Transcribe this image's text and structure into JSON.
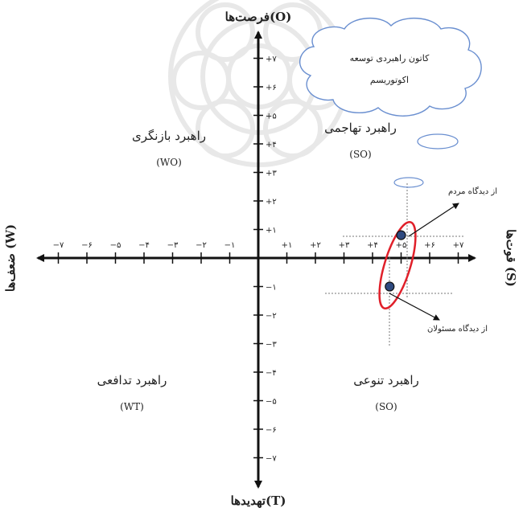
{
  "axes": {
    "top": "فرصت‌ها(O)",
    "bottom": "تهدیدها(T)",
    "left": "ضعف‌ها (W)",
    "right": "قوت‌ها (S)"
  },
  "y_ticks_positive": [
    "+۱",
    "+۲",
    "+۳",
    "+۴",
    "+۵",
    "+۶",
    "+۷"
  ],
  "y_ticks_negative": [
    "−۱",
    "−۲",
    "−۳",
    "−۴",
    "−۵",
    "−۶",
    "−۷"
  ],
  "x_ticks_positive": [
    "+۱",
    "+۲",
    "+۳",
    "+۴",
    "+۵",
    "+۶",
    "+۷"
  ],
  "x_ticks_negative": [
    "−۱",
    "−۲",
    "−۳",
    "−۴",
    "−۵",
    "−۶",
    "−۷"
  ],
  "quadrants": {
    "wo": {
      "title": "راهبرد بازنگری",
      "code": "(WO)"
    },
    "so_top": {
      "title": "راهبرد تهاجمی",
      "code": "(SO)"
    },
    "wt": {
      "title": "راهبرد تدافعی",
      "code": "(WT)"
    },
    "so_bottom": {
      "title": "راهبرد تنوعی",
      "code": "(SO)"
    }
  },
  "cloud": {
    "line1": "کاتون راهبردی توسعه",
    "line2": "اکوتوریسم"
  },
  "annotations": {
    "people": "از دیدگاه مردم",
    "officials": "از دیدگاه مسئولان"
  },
  "points": [
    {
      "label": "از دیدگاه مردم",
      "x": 5.0,
      "y": 0.8
    },
    {
      "label": "از دیدگاه مسئولان",
      "x": 4.6,
      "y": -1.0
    }
  ],
  "colors": {
    "axis": "#111111",
    "ellipse": "#e0202a",
    "point": "#2f4a80",
    "cloud_stroke": "#6a8fd0",
    "dotted": "#777777"
  }
}
